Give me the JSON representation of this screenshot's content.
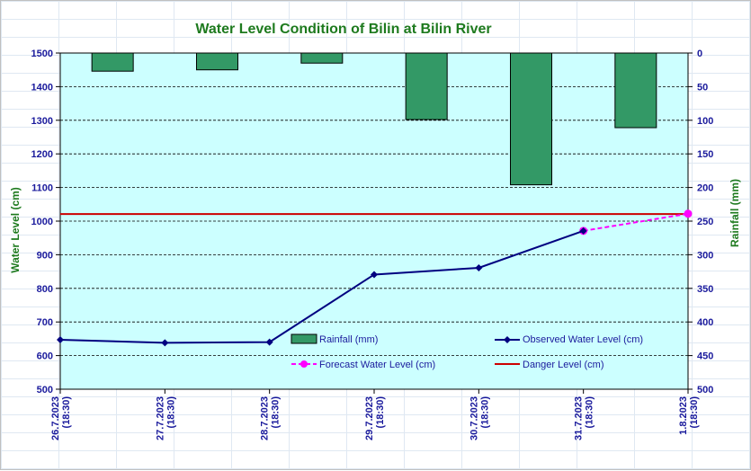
{
  "chart_data": {
    "type": "bar+line",
    "title": "Water Level Condition of Bilin at Bilin River",
    "ylabel_left": "Water Level (cm)",
    "ylabel_right": "Rainfall (mm)",
    "ylim_left": [
      500,
      1500
    ],
    "ylim_right": [
      500,
      0
    ],
    "yticks_left": [
      "500",
      "600",
      "700",
      "800",
      "900",
      "1000",
      "1100",
      "1200",
      "1300",
      "1400",
      "1500"
    ],
    "yticks_right": [
      "0",
      "50",
      "100",
      "150",
      "200",
      "250",
      "300",
      "350",
      "400",
      "450",
      "500"
    ],
    "categories": [
      [
        "26.7.2023",
        "(18:30)"
      ],
      [
        "27.7.2023",
        "(18:30)"
      ],
      [
        "28.7.2023",
        "(18:30)"
      ],
      [
        "29.7.2023",
        "(18:30)"
      ],
      [
        "30.7.2023",
        "(18:30)"
      ],
      [
        "31.7.2023",
        "(18:30)"
      ],
      [
        "1.8.2023",
        "(18:30)"
      ]
    ],
    "rainfall": {
      "name": "Rainfall (mm)",
      "color": "#339966",
      "values": [
        27,
        25,
        15,
        99,
        196,
        111
      ]
    },
    "observed": {
      "name": "Observed Water Level (cm)",
      "color": "#000080",
      "values": [
        647,
        638,
        640,
        841,
        861,
        971,
        null
      ]
    },
    "forecast": {
      "name": "Forecast Water Level (cm)",
      "color": "#ff00ff",
      "values": [
        null,
        null,
        null,
        null,
        null,
        971,
        1022
      ]
    },
    "danger": {
      "name": "Danger Level (cm)",
      "color": "#cc0000",
      "value": 1021
    },
    "plot_background": "#ccffff",
    "grid": "horizontal dashed",
    "legend_position": "bottom-inside"
  }
}
